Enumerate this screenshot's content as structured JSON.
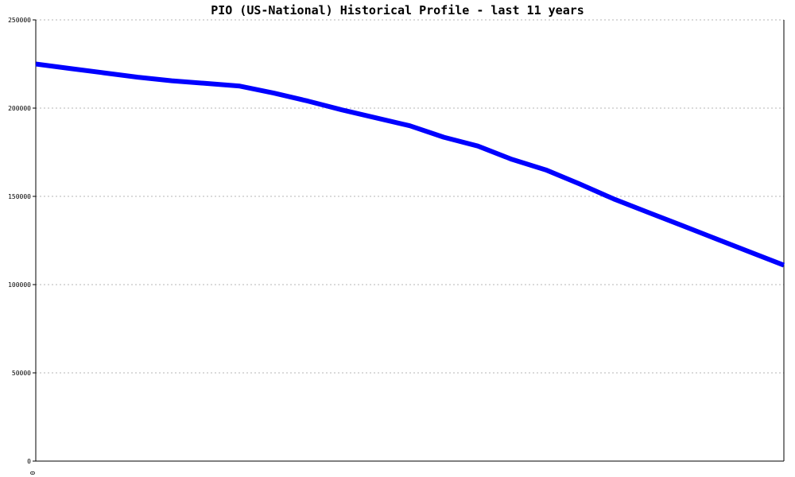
{
  "chart_data": {
    "type": "line",
    "title": "PIO (US-National) Historical Profile - last 11 years",
    "xlabel": "",
    "ylabel": "",
    "ylim": [
      0,
      250000
    ],
    "yticks": [
      "0",
      "50000",
      "100000",
      "150000",
      "200000",
      "250000"
    ],
    "yticks_values": [
      0,
      50000,
      100000,
      150000,
      200000,
      250000
    ],
    "xticks": [
      "0"
    ],
    "xlim": [
      0,
      11
    ],
    "grid": "horizontal-dashed",
    "colors": {
      "series": "#0000ff",
      "grid": "#b4b4b4",
      "axis": "#000000"
    },
    "series": [
      {
        "x": [
          0,
          0.5,
          1,
          1.5,
          2,
          2.5,
          3,
          3.5,
          4,
          4.5,
          5,
          5.5,
          6,
          6.5,
          7,
          7.5,
          8,
          8.5,
          9,
          9.5,
          10,
          10.5,
          11
        ],
        "values": [
          225000,
          222500,
          220000,
          217500,
          215500,
          214000,
          212500,
          208500,
          204000,
          199000,
          194500,
          190000,
          183500,
          178500,
          171000,
          165000,
          157000,
          148500,
          141000,
          133500,
          126000,
          118500,
          111000
        ]
      }
    ]
  }
}
